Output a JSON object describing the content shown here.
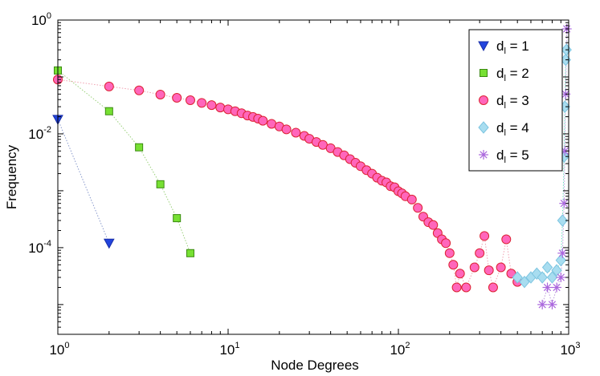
{
  "chart_data": {
    "type": "scatter",
    "title": "",
    "xlabel": "Node Degrees",
    "ylabel": "Frequency",
    "xscale": "log",
    "yscale": "log",
    "xlim": [
      1,
      1000
    ],
    "ylim": [
      3e-06,
      1
    ],
    "x_ticks": [
      {
        "base": "10",
        "exp": "0",
        "value": 1
      },
      {
        "base": "10",
        "exp": "1",
        "value": 10
      },
      {
        "base": "10",
        "exp": "2",
        "value": 100
      },
      {
        "base": "10",
        "exp": "3",
        "value": 1000
      }
    ],
    "y_ticks": [
      {
        "base": "10",
        "exp": "0",
        "value": 1
      },
      {
        "base": "10",
        "exp": "-2",
        "value": 0.01
      },
      {
        "base": "10",
        "exp": "-4",
        "value": 0.0001
      }
    ],
    "legend_position": "top-right",
    "series": [
      {
        "label_main": "d",
        "label_sub": "l",
        "label_rest": " = 1",
        "marker": "triangle-down",
        "fill": "#2244dd",
        "stroke": "#1a2fa8",
        "line_color": "#8899cc",
        "points": [
          [
            1,
            0.018
          ],
          [
            2,
            0.00012
          ]
        ]
      },
      {
        "label_main": "d",
        "label_sub": "l",
        "label_rest": " = 2",
        "marker": "square",
        "fill": "#77e033",
        "stroke": "#3a8a10",
        "line_color": "#9ad07a",
        "points": [
          [
            1,
            0.13
          ],
          [
            2,
            0.025
          ],
          [
            3,
            0.0058
          ],
          [
            4,
            0.0013
          ],
          [
            5,
            0.00033
          ],
          [
            6,
            8e-05
          ]
        ]
      },
      {
        "label_main": "d",
        "label_sub": "l",
        "label_rest": " = 3",
        "marker": "circle",
        "fill": "#ff66bb",
        "stroke": "#dd2233",
        "line_color": "#f0a0b0",
        "points": [
          [
            1,
            0.09
          ],
          [
            2,
            0.068
          ],
          [
            3,
            0.058
          ],
          [
            4,
            0.049
          ],
          [
            5,
            0.043
          ],
          [
            6,
            0.039
          ],
          [
            7,
            0.035
          ],
          [
            8,
            0.032
          ],
          [
            9,
            0.029
          ],
          [
            10,
            0.027
          ],
          [
            11,
            0.025
          ],
          [
            12,
            0.023
          ],
          [
            13,
            0.021
          ],
          [
            14,
            0.0198
          ],
          [
            15,
            0.0185
          ],
          [
            16,
            0.017
          ],
          [
            18,
            0.015
          ],
          [
            20,
            0.0135
          ],
          [
            22,
            0.012
          ],
          [
            25,
            0.0105
          ],
          [
            28,
            0.0092
          ],
          [
            30,
            0.0082
          ],
          [
            33,
            0.0072
          ],
          [
            36,
            0.0064
          ],
          [
            40,
            0.0056
          ],
          [
            44,
            0.0048
          ],
          [
            48,
            0.0042
          ],
          [
            52,
            0.0036
          ],
          [
            56,
            0.0031
          ],
          [
            60,
            0.0027
          ],
          [
            65,
            0.0023
          ],
          [
            70,
            0.002
          ],
          [
            75,
            0.0017
          ],
          [
            80,
            0.0015
          ],
          [
            85,
            0.0014
          ],
          [
            90,
            0.0012
          ],
          [
            95,
            0.00115
          ],
          [
            100,
            0.00098
          ],
          [
            105,
            0.0009
          ],
          [
            110,
            0.0008
          ],
          [
            120,
            0.0007
          ],
          [
            130,
            0.0005
          ],
          [
            140,
            0.00035
          ],
          [
            150,
            0.00028
          ],
          [
            160,
            0.00025
          ],
          [
            170,
            0.00018
          ],
          [
            180,
            0.00014
          ],
          [
            190,
            0.00012
          ],
          [
            200,
            8e-05
          ],
          [
            210,
            5e-05
          ],
          [
            220,
            2e-05
          ],
          [
            230,
            3.5e-05
          ],
          [
            250,
            2e-05
          ],
          [
            280,
            4.5e-05
          ],
          [
            300,
            8e-05
          ],
          [
            320,
            0.00016
          ],
          [
            340,
            4e-05
          ],
          [
            360,
            2e-05
          ],
          [
            400,
            4.5e-05
          ],
          [
            430,
            0.00014
          ],
          [
            460,
            3.5e-05
          ],
          [
            500,
            2.5e-05
          ]
        ]
      },
      {
        "label_main": "d",
        "label_sub": "l",
        "label_rest": " = 4",
        "marker": "diamond",
        "fill": "#a8ddf0",
        "stroke": "#7cc4e0",
        "line_color": "#66d9c0",
        "points": [
          [
            500,
            3e-05
          ],
          [
            550,
            2.5e-05
          ],
          [
            600,
            3e-05
          ],
          [
            650,
            3.5e-05
          ],
          [
            700,
            3e-05
          ],
          [
            750,
            4.5e-05
          ],
          [
            800,
            3e-05
          ],
          [
            850,
            4e-05
          ],
          [
            900,
            6e-05
          ],
          [
            920,
            0.0003
          ],
          [
            940,
            0.004
          ],
          [
            950,
            0.03
          ],
          [
            960,
            0.2
          ],
          [
            970,
            0.3
          ]
        ]
      },
      {
        "label_main": "d",
        "label_sub": "l",
        "label_rest": " = 5",
        "marker": "asterisk",
        "fill": "#aa66dd",
        "stroke": "#8844cc",
        "line_color": "#bb99dd",
        "points": [
          [
            700,
            1e-05
          ],
          [
            750,
            2e-05
          ],
          [
            800,
            1e-05
          ],
          [
            850,
            2e-05
          ],
          [
            900,
            3e-05
          ],
          [
            920,
            8e-05
          ],
          [
            940,
            0.0006
          ],
          [
            950,
            0.005
          ],
          [
            960,
            0.05
          ],
          [
            975,
            0.7
          ]
        ]
      }
    ]
  }
}
